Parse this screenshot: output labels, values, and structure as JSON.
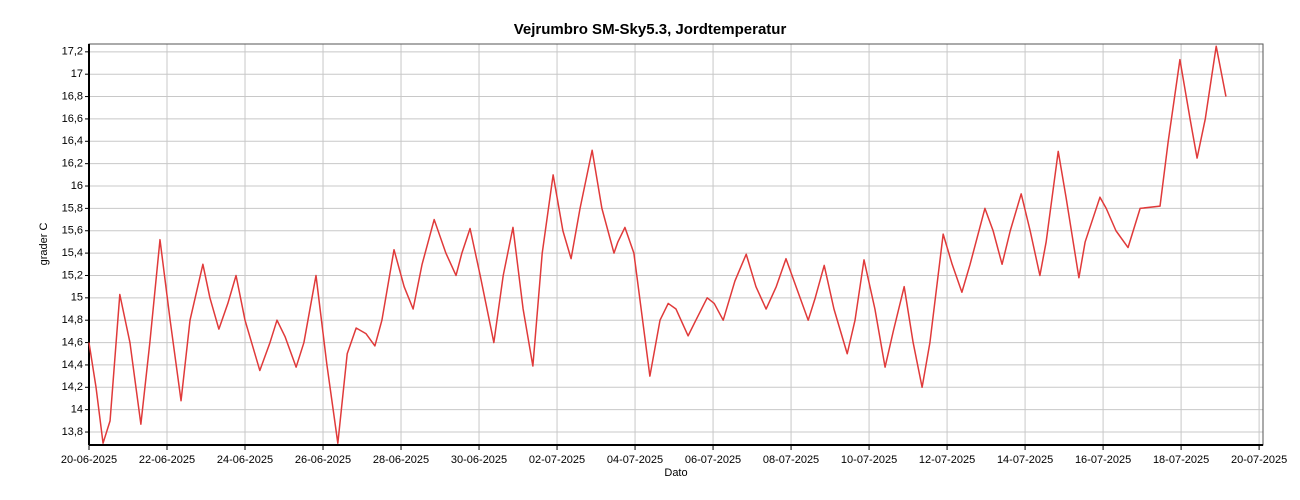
{
  "chart_data": {
    "type": "line",
    "title": "Vejrumbro SM-Sky5.3, Jordtemperatur",
    "x_label": "Dato",
    "y_label": "grader C",
    "grid": true,
    "xlim": [
      0,
      30.1
    ],
    "xticks": [
      {
        "value": 0,
        "label": "20-06-2025"
      },
      {
        "value": 2,
        "label": "22-06-2025"
      },
      {
        "value": 4,
        "label": "24-06-2025"
      },
      {
        "value": 6,
        "label": "26-06-2025"
      },
      {
        "value": 8,
        "label": "28-06-2025"
      },
      {
        "value": 10,
        "label": "30-06-2025"
      },
      {
        "value": 12,
        "label": "02-07-2025"
      },
      {
        "value": 14,
        "label": "04-07-2025"
      },
      {
        "value": 16,
        "label": "06-07-2025"
      },
      {
        "value": 18,
        "label": "08-07-2025"
      },
      {
        "value": 20,
        "label": "10-07-2025"
      },
      {
        "value": 22,
        "label": "12-07-2025"
      },
      {
        "value": 24,
        "label": "14-07-2025"
      },
      {
        "value": 26,
        "label": "16-07-2025"
      },
      {
        "value": 28,
        "label": "18-07-2025"
      },
      {
        "value": 30,
        "label": "20-07-2025"
      }
    ],
    "ylim": [
      13.684,
      17.27
    ],
    "yticks": [
      {
        "value": 13.8,
        "label": "13,8"
      },
      14,
      {
        "value": 14.2,
        "label": "14,2"
      },
      {
        "value": 14.4,
        "label": "14,4"
      },
      {
        "value": 14.6,
        "label": "14,6"
      },
      {
        "value": 14.8,
        "label": "14,8"
      },
      15,
      {
        "value": 15.2,
        "label": "15,2"
      },
      {
        "value": 15.4,
        "label": "15,4"
      },
      {
        "value": 15.6,
        "label": "15,6"
      },
      {
        "value": 15.8,
        "label": "15,8"
      },
      16,
      {
        "value": 16.2,
        "label": "16,2"
      },
      {
        "value": 16.4,
        "label": "16,4"
      },
      {
        "value": 16.6,
        "label": "16,6"
      },
      {
        "value": 16.8,
        "label": "16,8"
      },
      17,
      {
        "value": 17.2,
        "label": "17,2"
      }
    ],
    "x": [
      0,
      0.18,
      0.36,
      0.54,
      0.79,
      1.05,
      1.33,
      1.56,
      1.82,
      2.08,
      2.36,
      2.59,
      2.92,
      3.1,
      3.33,
      3.56,
      3.77,
      4.0,
      4.38,
      4.64,
      4.82,
      5.03,
      5.31,
      5.51,
      5.82,
      6.1,
      6.38,
      6.62,
      6.85,
      7.1,
      7.33,
      7.51,
      7.82,
      8.08,
      8.31,
      8.54,
      8.85,
      9.15,
      9.41,
      9.56,
      9.77,
      10.03,
      10.38,
      10.62,
      10.87,
      11.13,
      11.38,
      11.62,
      11.9,
      12.15,
      12.36,
      12.59,
      12.9,
      13.15,
      13.46,
      13.56,
      13.74,
      13.97,
      14.38,
      14.64,
      14.85,
      15.05,
      15.36,
      15.56,
      15.85,
      16.03,
      16.26,
      16.56,
      16.85,
      17.1,
      17.36,
      17.62,
      17.87,
      18.18,
      18.44,
      18.62,
      18.85,
      19.1,
      19.44,
      19.64,
      19.87,
      20.15,
      20.41,
      20.62,
      20.9,
      21.13,
      21.36,
      21.56,
      21.9,
      22.13,
      22.38,
      22.59,
      22.97,
      23.18,
      23.41,
      23.62,
      23.9,
      24.13,
      24.38,
      24.54,
      24.85,
      25.05,
      25.38,
      25.54,
      25.92,
      26.08,
      26.33,
      26.64,
      26.95,
      27.46,
      27.67,
      27.97,
      28.23,
      28.41,
      28.62,
      28.9,
      29.15
    ],
    "series": [
      {
        "color": "#e03a3a",
        "values": [
          14.6,
          14.2,
          13.7,
          13.9,
          15.03,
          14.6,
          13.87,
          14.6,
          15.52,
          14.8,
          14.08,
          14.8,
          15.3,
          15.0,
          14.72,
          14.95,
          15.2,
          14.8,
          14.35,
          14.6,
          14.8,
          14.65,
          14.38,
          14.6,
          15.2,
          14.4,
          13.7,
          14.5,
          14.73,
          14.68,
          14.57,
          14.8,
          15.43,
          15.1,
          14.9,
          15.3,
          15.7,
          15.4,
          15.2,
          15.4,
          15.62,
          15.2,
          14.6,
          15.2,
          15.63,
          14.9,
          14.39,
          15.4,
          16.1,
          15.6,
          15.35,
          15.8,
          16.32,
          15.8,
          15.4,
          15.5,
          15.63,
          15.4,
          14.3,
          14.8,
          14.95,
          14.9,
          14.66,
          14.8,
          15.0,
          14.95,
          14.8,
          15.15,
          15.39,
          15.1,
          14.9,
          15.1,
          15.35,
          15.05,
          14.8,
          15.0,
          15.29,
          14.9,
          14.5,
          14.8,
          15.34,
          14.9,
          14.38,
          14.7,
          15.1,
          14.6,
          14.2,
          14.6,
          15.57,
          15.3,
          15.05,
          15.3,
          15.8,
          15.6,
          15.3,
          15.6,
          15.93,
          15.6,
          15.2,
          15.5,
          16.31,
          15.9,
          15.18,
          15.5,
          15.9,
          15.8,
          15.6,
          15.45,
          15.8,
          15.82,
          16.4,
          17.13,
          16.6,
          16.25,
          16.6,
          17.25,
          16.8
        ]
      }
    ]
  }
}
